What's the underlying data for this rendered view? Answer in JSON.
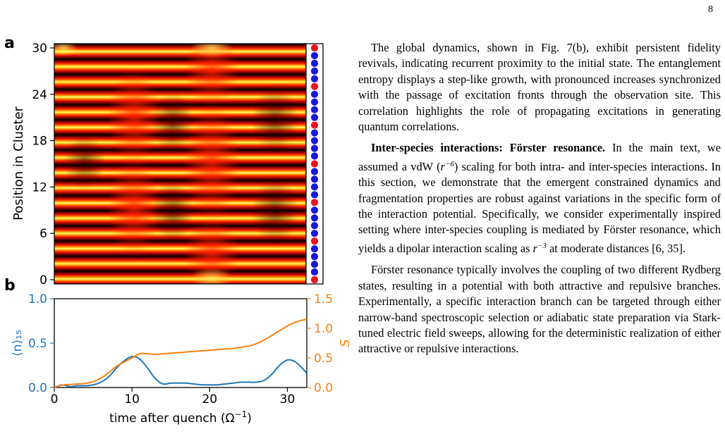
{
  "page": {
    "number": "8"
  },
  "figure": {
    "panel_a_label": "a",
    "panel_b_label": "b",
    "panel_a": {
      "ylabel": "Position in Cluster",
      "yticks": [
        "0",
        "6",
        "12",
        "18",
        "24",
        "30"
      ],
      "sites": 31,
      "red_sites": [
        0,
        5,
        10,
        15,
        20,
        25,
        30
      ],
      "site_colors": {
        "red": "#e8141e",
        "blue": "#1a1ad6"
      },
      "colormap": "hot"
    },
    "panel_b": {
      "xlabel": "time after quench (Ω",
      "xlabel_sup": "−1",
      "xlabel_close": ")",
      "xticks": [
        "0",
        "10",
        "20",
        "30"
      ],
      "left_ylabel": "⟨n⟩₁₅",
      "left_yticks": [
        "0.0",
        "0.5",
        "1.0"
      ],
      "right_ylabel": "S",
      "right_yticks": [
        "0.0",
        "0.5",
        "1.0",
        "1.5"
      ],
      "colors": {
        "left": "#1f77b4",
        "right": "#ff7f0e"
      }
    }
  },
  "chart_data": {
    "type": "line",
    "x": [
      0,
      1,
      2,
      3,
      4,
      5,
      6,
      7,
      8,
      9,
      10,
      11,
      12,
      13,
      14,
      15,
      16,
      17,
      18,
      19,
      20,
      21,
      22,
      23,
      24,
      25,
      26,
      27,
      28,
      29,
      30,
      31,
      32,
      32.5
    ],
    "xlim": [
      0,
      32.5
    ],
    "series": [
      {
        "axis": "left",
        "ylim": [
          0,
          1.0
        ],
        "values": [
          0.0,
          0.03,
          0.01,
          0.02,
          0.02,
          0.03,
          0.06,
          0.12,
          0.22,
          0.3,
          0.35,
          0.32,
          0.22,
          0.1,
          0.04,
          0.05,
          0.05,
          0.05,
          0.04,
          0.03,
          0.03,
          0.03,
          0.04,
          0.05,
          0.06,
          0.06,
          0.06,
          0.08,
          0.15,
          0.25,
          0.31,
          0.29,
          0.21,
          0.16
        ]
      },
      {
        "axis": "right",
        "ylim": [
          0,
          1.5
        ],
        "values": [
          0.0,
          0.04,
          0.05,
          0.06,
          0.07,
          0.1,
          0.16,
          0.25,
          0.36,
          0.43,
          0.5,
          0.57,
          0.57,
          0.56,
          0.57,
          0.58,
          0.59,
          0.6,
          0.61,
          0.62,
          0.63,
          0.64,
          0.65,
          0.66,
          0.68,
          0.7,
          0.74,
          0.8,
          0.88,
          0.96,
          1.04,
          1.1,
          1.14,
          1.15
        ]
      }
    ]
  },
  "text": {
    "p1": "The global dynamics, shown in Fig. 7(b), exhibit persistent fidelity revivals, indicating recurrent proximity to the initial state. The entanglement entropy displays a step-like growth, with pronounced increases synchronized with the passage of excitation fronts through the observation site. This correlation highlights the role of propagating excitations in generating quantum correlations.",
    "p2_bold": "Inter-species interactions: Förster resonance.",
    "p2_a": " In the main text, we assumed a vdW (",
    "p2_r6": "r",
    "p2_exp6": "−6",
    "p2_b": ") scaling for both intra- and inter-species interactions. In this section, we demonstrate that the emergent constrained dynamics and fragmentation properties are robust against variations in the specific form of the interaction potential. Specifically, we consider experimentally inspired setting where inter-species coupling is mediated by Förster resonance, which yields a dipolar interaction scaling as ",
    "p2_r3": "r",
    "p2_exp3": "−3",
    "p2_c": " at moderate distances [6, 35].",
    "p3": "Förster resonance typically involves the coupling of two different Rydberg states, resulting in a potential with both attractive and repulsive branches. Experimentally, a specific interaction branch can be targeted through either narrow-band spectroscopic selection or adiabatic state preparation via Stark-tuned electric field sweeps, allowing for the deterministic realization of either attractive or repulsive interactions."
  }
}
